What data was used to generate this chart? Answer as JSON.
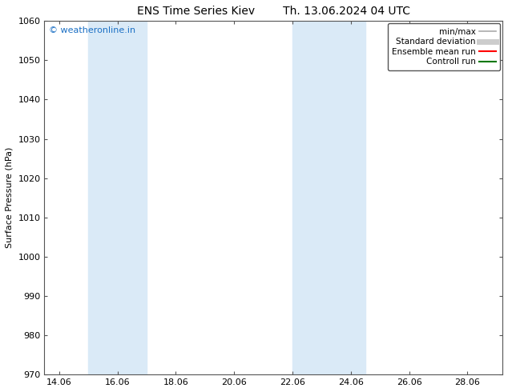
{
  "title_left": "ENS Time Series Kiev",
  "title_right": "Th. 13.06.2024 04 UTC",
  "ylabel": "Surface Pressure (hPa)",
  "ylim": [
    970,
    1060
  ],
  "yticks": [
    970,
    980,
    990,
    1000,
    1010,
    1020,
    1030,
    1040,
    1050,
    1060
  ],
  "xlim_start": 13.5,
  "xlim_end": 29.2,
  "xtick_labels": [
    "14.06",
    "16.06",
    "18.06",
    "20.06",
    "22.06",
    "24.06",
    "26.06",
    "28.06"
  ],
  "xtick_positions": [
    14.0,
    16.0,
    18.0,
    20.0,
    22.0,
    24.0,
    26.0,
    28.0
  ],
  "shaded_bands": [
    {
      "x_start": 15.0,
      "x_end": 17.0
    },
    {
      "x_start": 22.0,
      "x_end": 24.5
    }
  ],
  "shaded_color": "#daeaf7",
  "watermark": "© weatheronline.in",
  "watermark_color": "#1a6fc4",
  "legend_entries": [
    {
      "label": "min/max",
      "color": "#aaaaaa",
      "linewidth": 1.2,
      "style": "solid"
    },
    {
      "label": "Standard deviation",
      "color": "#cccccc",
      "linewidth": 5,
      "style": "solid"
    },
    {
      "label": "Ensemble mean run",
      "color": "#ff0000",
      "linewidth": 1.5,
      "style": "solid"
    },
    {
      "label": "Controll run",
      "color": "#007700",
      "linewidth": 1.5,
      "style": "solid"
    }
  ],
  "bg_color": "#ffffff",
  "spine_color": "#555555",
  "tick_color": "#333333",
  "title_fontsize": 10,
  "ylabel_fontsize": 8,
  "tick_fontsize": 8,
  "legend_fontsize": 7.5,
  "watermark_fontsize": 8
}
